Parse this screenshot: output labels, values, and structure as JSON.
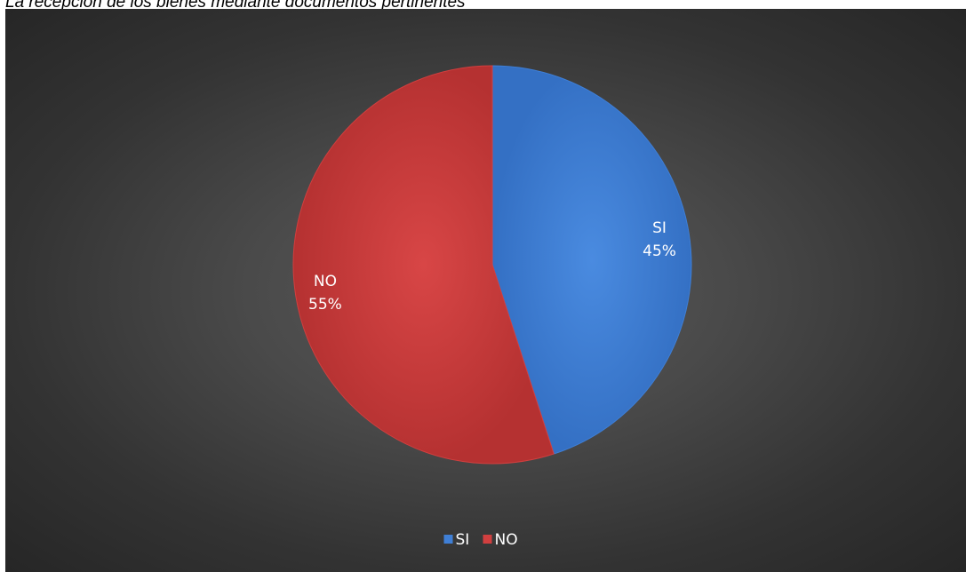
{
  "caption": "La recepción de los bienes mediante documentos pertinentes",
  "chart_data": {
    "type": "pie",
    "title": "",
    "slices": [
      {
        "label": "SI",
        "value": 45,
        "percent_label": "45%",
        "color": "#3f7fd6"
      },
      {
        "label": "NO",
        "value": 55,
        "percent_label": "55%",
        "color": "#d13f3f"
      }
    ],
    "legend": {
      "position": "bottom",
      "entries": [
        "SI",
        "NO"
      ]
    },
    "background": "#3a3a3a"
  }
}
